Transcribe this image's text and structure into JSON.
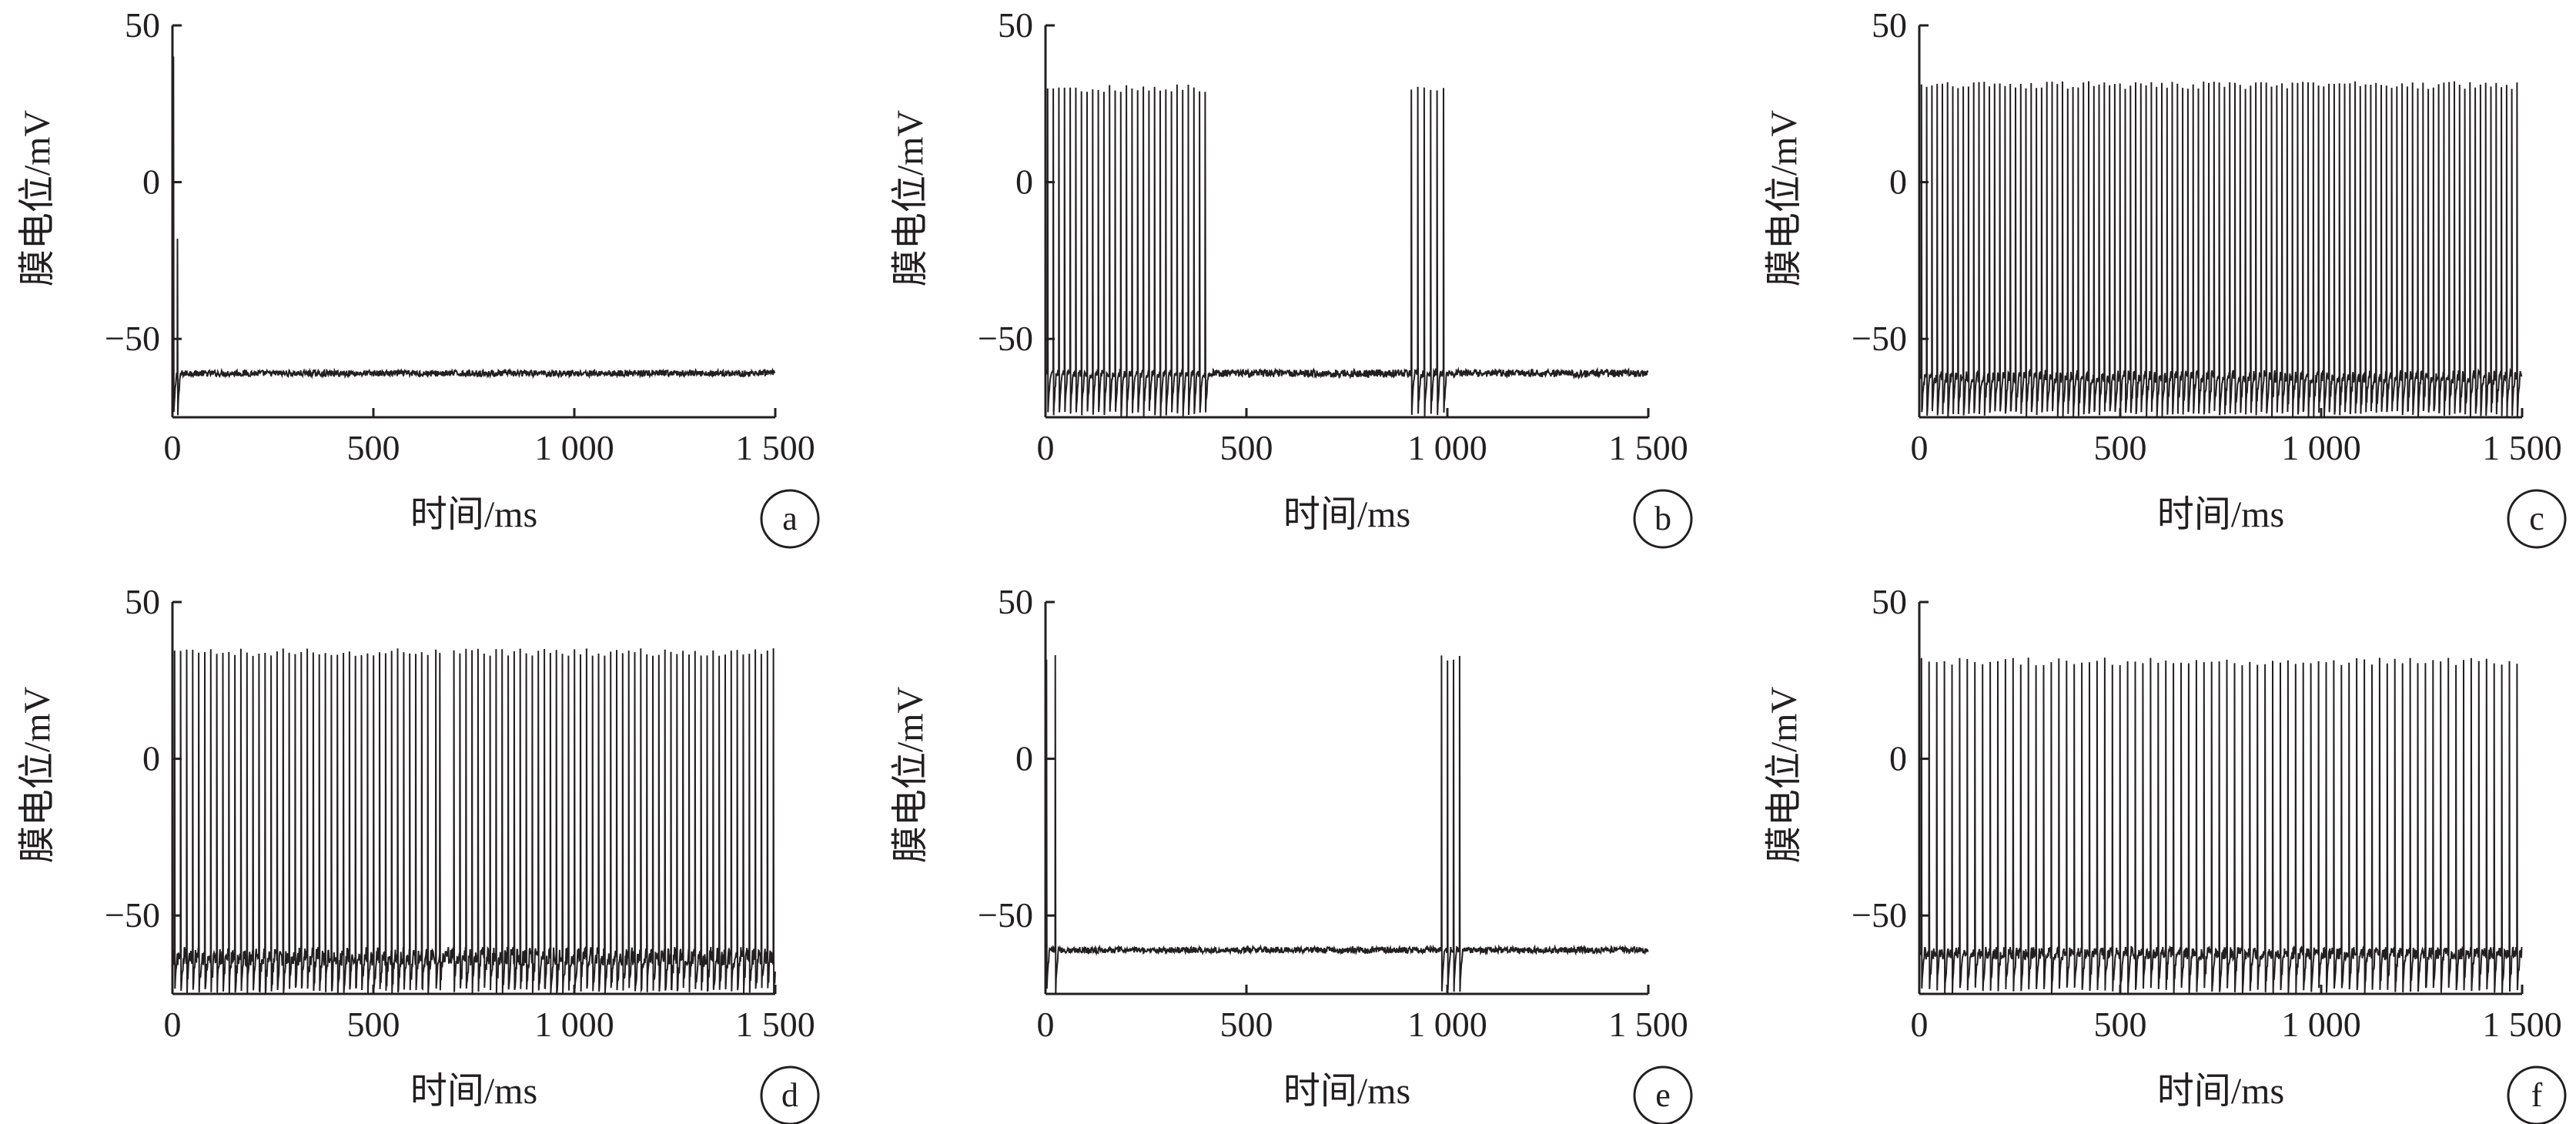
{
  "figure": {
    "xlabel": "时间/ms",
    "ylabel": "膜电位/mV",
    "line_color": "#231f20"
  },
  "chart_data": [
    {
      "panel": "a",
      "type": "line",
      "title": "",
      "xlabel": "时间/ms",
      "ylabel": "膜电位/mV",
      "xlim": [
        0,
        1500
      ],
      "ylim": [
        -75,
        50
      ],
      "x_ticks": [
        0,
        500,
        1000,
        1500
      ],
      "x_tick_labels": [
        "0",
        "500",
        "1 000",
        "1 500"
      ],
      "y_ticks": [
        50,
        0,
        -50
      ],
      "y_tick_labels": [
        "50",
        "0",
        "−50"
      ],
      "grid": false,
      "resting_potential": -61,
      "spike_peak": 40,
      "after_hyperpolarization": -75,
      "noise_mV": 1,
      "spike_times_ms": [
        2
      ],
      "partial_spikes": [
        {
          "t": 12,
          "peak": -18
        }
      ]
    },
    {
      "panel": "b",
      "type": "line",
      "title": "",
      "xlabel": "时间/ms",
      "ylabel": "膜电位/mV",
      "xlim": [
        0,
        1500
      ],
      "ylim": [
        -75,
        50
      ],
      "x_ticks": [
        0,
        500,
        1000,
        1500
      ],
      "x_tick_labels": [
        "0",
        "500",
        "1 000",
        "1 500"
      ],
      "y_ticks": [
        50,
        0,
        -50
      ],
      "y_tick_labels": [
        "50",
        "0",
        "−50"
      ],
      "grid": false,
      "resting_potential": -61,
      "spike_peak": 30,
      "after_hyperpolarization": -75,
      "noise_mV": 1.2,
      "bursts_ms": [
        {
          "start": 5,
          "end": 410,
          "interval": 14
        },
        {
          "start": 910,
          "end": 990,
          "interval": 16
        }
      ]
    },
    {
      "panel": "c",
      "type": "line",
      "title": "",
      "xlabel": "时间/ms",
      "ylabel": "膜电位/mV",
      "xlim": [
        0,
        1500
      ],
      "ylim": [
        -75,
        50
      ],
      "x_ticks": [
        0,
        500,
        1000,
        1500
      ],
      "x_tick_labels": [
        "0",
        "500",
        "1 000",
        "1 500"
      ],
      "y_ticks": [
        50,
        0,
        -50
      ],
      "y_tick_labels": [
        "50",
        "0",
        "−50"
      ],
      "grid": false,
      "resting_potential": -62,
      "spike_peak": 31,
      "after_hyperpolarization": -75,
      "noise_mV": 2,
      "bursts_ms": [
        {
          "start": 5,
          "end": 1495,
          "interval": 13
        }
      ]
    },
    {
      "panel": "d",
      "type": "line",
      "title": "",
      "xlabel": "时间/ms",
      "ylabel": "膜电位/mV",
      "xlim": [
        0,
        1500
      ],
      "ylim": [
        -75,
        50
      ],
      "x_ticks": [
        0,
        500,
        1000,
        1500
      ],
      "x_tick_labels": [
        "0",
        "500",
        "1 000",
        "1 500"
      ],
      "y_ticks": [
        50,
        0,
        -50
      ],
      "y_tick_labels": [
        "50",
        "0",
        "−50"
      ],
      "grid": false,
      "resting_potential": -63,
      "spike_peak": 34,
      "after_hyperpolarization": -75,
      "noise_mV": 3,
      "bursts_ms": [
        {
          "start": 5,
          "end": 640,
          "interval": 15
        },
        {
          "start": 655,
          "end": 665,
          "interval": 10
        },
        {
          "start": 700,
          "end": 1495,
          "interval": 15
        }
      ]
    },
    {
      "panel": "e",
      "type": "line",
      "title": "",
      "xlabel": "时间/ms",
      "ylabel": "膜电位/mV",
      "xlim": [
        0,
        1500
      ],
      "ylim": [
        -75,
        50
      ],
      "x_ticks": [
        0,
        500,
        1000,
        1500
      ],
      "x_tick_labels": [
        "0",
        "500",
        "1 000",
        "1 500"
      ],
      "y_ticks": [
        50,
        0,
        -50
      ],
      "y_tick_labels": [
        "50",
        "0",
        "−50"
      ],
      "grid": false,
      "resting_potential": -61,
      "spike_peak": 32,
      "after_hyperpolarization": -75,
      "noise_mV": 1,
      "bursts_ms": [
        {
          "start": 2,
          "end": 25,
          "interval": 22
        },
        {
          "start": 985,
          "end": 1030,
          "interval": 15
        }
      ]
    },
    {
      "panel": "f",
      "type": "line",
      "title": "",
      "xlabel": "时间/ms",
      "ylabel": "膜电位/mV",
      "xlim": [
        0,
        1500
      ],
      "ylim": [
        -75,
        50
      ],
      "x_ticks": [
        0,
        500,
        1000,
        1500
      ],
      "x_tick_labels": [
        "0",
        "500",
        "1 000",
        "1 500"
      ],
      "y_ticks": [
        50,
        0,
        -50
      ],
      "y_tick_labels": [
        "50",
        "0",
        "−50"
      ],
      "grid": false,
      "resting_potential": -62,
      "spike_peak": 31,
      "after_hyperpolarization": -75,
      "noise_mV": 2,
      "bursts_ms": [
        {
          "start": 5,
          "end": 1495,
          "interval": 19
        }
      ]
    }
  ]
}
